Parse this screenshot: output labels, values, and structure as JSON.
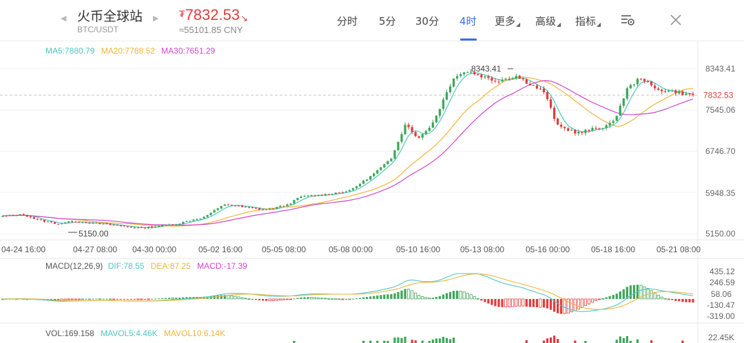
{
  "header": {
    "pair_name": "火币全球站",
    "pair_symbol": "BTC/USDT",
    "price_currency": "₮",
    "price": "7832.53",
    "price_arrow": "↘",
    "price_cny": "≈55101.85 CNY",
    "nav_left_icon": "chevron-left-icon",
    "nav_right_icon": "chevron-right-icon",
    "tabs": [
      {
        "label": "分时",
        "active": false
      },
      {
        "label": "5分",
        "active": false
      },
      {
        "label": "30分",
        "active": false
      },
      {
        "label": "4时",
        "active": true
      },
      {
        "label": "更多",
        "active": false
      },
      {
        "label": "高级",
        "active": false
      },
      {
        "label": "指标",
        "active": false
      }
    ],
    "settings_icon": "chart-settings-icon",
    "close_icon": "close-icon"
  },
  "colors": {
    "up": "#3fa65a",
    "down": "#e03c3c",
    "ma5": "#4ec7c0",
    "ma20": "#f0b43c",
    "ma30": "#d246c8",
    "accent": "#3570e8",
    "price_red": "#e03c3c"
  },
  "chart_data": {
    "type": "candlestick",
    "main": {
      "legend": [
        {
          "text": "MA5:7880.79",
          "color": "#4ec7c0"
        },
        {
          "text": "MA20:7788.52",
          "color": "#f0b43c"
        },
        {
          "text": "MA30:7651.29",
          "color": "#d246c8"
        }
      ],
      "y_ticks": [
        "8343.41",
        "7545.06",
        "6746.70",
        "5948.35",
        "5150.00"
      ],
      "y_tick_values": [
        8343.41,
        7545.06,
        6746.7,
        5948.35,
        5150.0
      ],
      "ylim": [
        5150.0,
        8343.41
      ],
      "current_price_tag": "7832.53",
      "current_price": 7832.53,
      "high_annotation": "8343.41",
      "low_annotation": "5150.00",
      "x_ticks": [
        "04-24 16:00",
        "04-27 08:00",
        "04-30 00:00",
        "05-02 16:00",
        "05-05 08:00",
        "05-08 00:00",
        "05-10 16:00",
        "05-13 08:00",
        "05-16 00:00",
        "05-18 16:00",
        "05-21 08:00"
      ],
      "anchors": [
        [
          0,
          5490
        ],
        [
          6,
          5520
        ],
        [
          10,
          5420
        ],
        [
          16,
          5340
        ],
        [
          20,
          5390
        ],
        [
          30,
          5330
        ],
        [
          40,
          5260
        ],
        [
          50,
          5340
        ],
        [
          58,
          5470
        ],
        [
          64,
          5720
        ],
        [
          70,
          5660
        ],
        [
          76,
          5610
        ],
        [
          82,
          5710
        ],
        [
          86,
          5870
        ],
        [
          92,
          5900
        ],
        [
          100,
          5980
        ],
        [
          106,
          6260
        ],
        [
          112,
          6600
        ],
        [
          116,
          7280
        ],
        [
          120,
          7000
        ],
        [
          124,
          7300
        ],
        [
          130,
          8180
        ],
        [
          134,
          8300
        ],
        [
          142,
          8110
        ],
        [
          148,
          8200
        ],
        [
          156,
          7900
        ],
        [
          160,
          7230
        ],
        [
          166,
          7100
        ],
        [
          172,
          7200
        ],
        [
          176,
          7300
        ],
        [
          180,
          7950
        ],
        [
          184,
          8180
        ],
        [
          188,
          7950
        ],
        [
          194,
          7900
        ],
        [
          198,
          7832.53
        ]
      ]
    },
    "macd": {
      "label": "MACD(12,26,9)",
      "legend": [
        {
          "text": "DIF:78.55",
          "color": "#4ec7c0"
        },
        {
          "text": "DEA:87.25",
          "color": "#f0b43c"
        },
        {
          "text": "MACD:-17.39",
          "color": "#d246c8"
        }
      ],
      "y_ticks": [
        "435.12",
        "246.59",
        "58.06",
        "-130.47",
        "-319.00"
      ],
      "y_tick_values": [
        435.12,
        246.59,
        58.06,
        -130.47,
        -319.0
      ],
      "ylim": [
        -319.0,
        435.12
      ]
    },
    "volume": {
      "legend": [
        {
          "text": "VOL:169.158",
          "color": "#555555"
        },
        {
          "text": "MAVOL5:4.46K",
          "color": "#4ec7c0"
        },
        {
          "text": "MAVOL10:6.14K",
          "color": "#f0b43c"
        }
      ],
      "y_ticks": [
        "22.45K"
      ]
    }
  }
}
